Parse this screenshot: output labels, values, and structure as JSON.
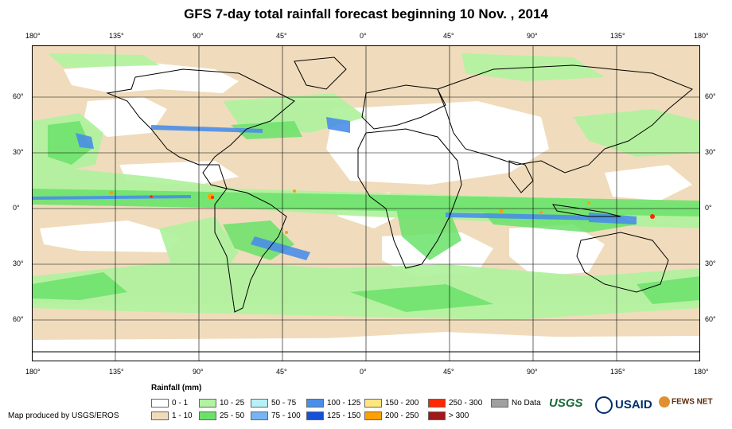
{
  "title": "GFS 7-day total rainfall forecast beginning 10 Nov. , 2014",
  "lon_labels": [
    "180°",
    "135°",
    "90°",
    "45°",
    "0°",
    "45°",
    "90°",
    "135°",
    "180°"
  ],
  "lat_labels": [
    "60°",
    "30°",
    "0°",
    "30°",
    "60°"
  ],
  "legend": {
    "title": "Rainfall (mm)",
    "items": [
      {
        "label": "0 - 1",
        "color": "#ffffff"
      },
      {
        "label": "1 - 10",
        "color": "#f0dcbc"
      },
      {
        "label": "10 - 25",
        "color": "#b2f2a0"
      },
      {
        "label": "25 - 50",
        "color": "#6ae26a"
      },
      {
        "label": "50 - 75",
        "color": "#b8f0f8"
      },
      {
        "label": "75 - 100",
        "color": "#78b4f4"
      },
      {
        "label": "100 - 125",
        "color": "#4a8ee8"
      },
      {
        "label": "125 - 150",
        "color": "#1450d8"
      },
      {
        "label": "150 - 200",
        "color": "#fee680"
      },
      {
        "label": "200 - 250",
        "color": "#ffa000"
      },
      {
        "label": "250 - 300",
        "color": "#ff2800"
      },
      {
        "label": "> 300",
        "color": "#a01818"
      },
      {
        "label": "No Data",
        "color": "#a0a0a0"
      }
    ]
  },
  "credit": "Map produced by USGS/EROS",
  "logos": {
    "usgs": "USGS",
    "usaid": "USAID",
    "fewsnet": "FEWS NET"
  },
  "colors": {
    "ocean_land_bg": "#f0dcbc",
    "light_green": "#b2f2a0",
    "green": "#6ae26a",
    "blue": "#4a8ee8",
    "orange": "#ffa000",
    "red": "#ff2800"
  }
}
